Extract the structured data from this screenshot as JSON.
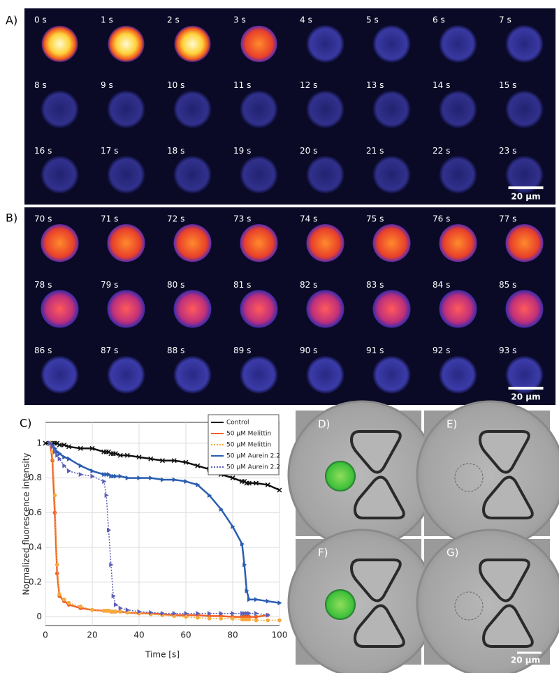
{
  "panel_a": {
    "label": "A)",
    "frames": [
      "0 s",
      "1 s",
      "2 s",
      "3 s",
      "4 s",
      "5 s",
      "6 s",
      "7 s",
      "8 s",
      "9 s",
      "10 s",
      "11 s",
      "12 s",
      "13 s",
      "14 s",
      "15 s",
      "16 s",
      "17 s",
      "18 s",
      "19 s",
      "20 s",
      "21 s",
      "22 s",
      "23 s"
    ],
    "scale_bar": "20 μm"
  },
  "panel_b": {
    "label": "B)",
    "frames": [
      "70 s",
      "71 s",
      "72 s",
      "73 s",
      "74 s",
      "75 s",
      "76 s",
      "77 s",
      "78 s",
      "79 s",
      "80 s",
      "81 s",
      "82 s",
      "83 s",
      "84 s",
      "85 s",
      "86 s",
      "87 s",
      "88 s",
      "89 s",
      "90 s",
      "91 s",
      "92 s",
      "93 s"
    ],
    "scale_bar": "20 μm"
  },
  "chart_data": {
    "type": "line",
    "label": "C)",
    "xlabel": "Time [s]",
    "ylabel": "Normalized fluorescence intensity",
    "x": [
      0,
      2,
      3,
      4,
      5,
      6,
      8,
      10,
      15,
      20,
      25,
      26,
      27,
      28,
      29,
      30,
      32,
      35,
      40,
      45,
      50,
      55,
      60,
      65,
      70,
      75,
      80,
      84,
      85,
      86,
      87,
      90,
      95,
      100
    ],
    "series": [
      {
        "name": "Control",
        "color": "#111111",
        "linestyle": "solid",
        "marker": "x",
        "values": [
          1.0,
          1.0,
          1.0,
          1.0,
          1.0,
          0.99,
          0.99,
          0.98,
          0.97,
          0.97,
          0.95,
          0.95,
          0.95,
          0.94,
          0.94,
          0.94,
          0.93,
          0.93,
          0.92,
          0.91,
          0.9,
          0.9,
          0.89,
          0.87,
          0.85,
          0.82,
          0.8,
          0.78,
          0.78,
          0.77,
          0.77,
          0.77,
          0.76,
          0.73
        ]
      },
      {
        "name": "50 μM Melittin",
        "color": "#f0622a",
        "linestyle": "solid",
        "marker": "o",
        "values": [
          null,
          1.0,
          0.9,
          0.6,
          0.25,
          0.12,
          0.09,
          0.07,
          0.05,
          0.04,
          0.035,
          0.035,
          0.035,
          0.03,
          0.03,
          0.03,
          0.03,
          0.025,
          0.02,
          0.02,
          0.015,
          0.01,
          0.01,
          0.01,
          0.005,
          0.005,
          0,
          0,
          0,
          0,
          0,
          0,
          0.01,
          null
        ]
      },
      {
        "name": "50 μM Melittin",
        "color": "#f6a93b",
        "linestyle": "dotted",
        "marker": "o",
        "values": [
          null,
          1.0,
          0.95,
          0.7,
          0.3,
          0.13,
          0.1,
          0.08,
          0.06,
          0.04,
          0.035,
          0.035,
          0.035,
          0.03,
          0.03,
          0.03,
          0.03,
          0.025,
          0.02,
          0.015,
          0.01,
          0.005,
          0,
          -0.005,
          -0.01,
          -0.01,
          -0.01,
          -0.015,
          -0.015,
          -0.015,
          -0.015,
          -0.02,
          -0.02,
          -0.02
        ]
      },
      {
        "name": "50 μM Aurein 2.2",
        "color": "#2a5db0",
        "linestyle": "solid",
        "marker": "triangle",
        "values": [
          null,
          1.0,
          0.99,
          0.97,
          0.95,
          0.94,
          0.92,
          0.91,
          0.87,
          0.84,
          0.82,
          0.82,
          0.82,
          0.81,
          0.81,
          0.81,
          0.81,
          0.8,
          0.8,
          0.8,
          0.79,
          0.79,
          0.78,
          0.76,
          0.7,
          0.62,
          0.52,
          0.42,
          0.3,
          0.15,
          0.1,
          0.1,
          0.09,
          0.08
        ]
      },
      {
        "name": "50 μM Aurein 2.2",
        "color": "#5b5fb8",
        "linestyle": "dotted",
        "marker": "triangle",
        "values": [
          null,
          1.0,
          0.98,
          0.95,
          0.93,
          0.91,
          0.87,
          0.84,
          0.82,
          0.81,
          0.78,
          0.7,
          0.5,
          0.3,
          0.12,
          0.07,
          0.05,
          0.04,
          0.03,
          0.025,
          0.02,
          0.02,
          0.02,
          0.02,
          0.02,
          0.02,
          0.02,
          0.02,
          0.02,
          0.02,
          0.02,
          0.02,
          0.01,
          null
        ]
      }
    ],
    "xlim": [
      0,
      100
    ],
    "ylim": [
      -0.05,
      1.12
    ],
    "xticks": [
      0,
      20,
      40,
      60,
      80,
      100
    ],
    "yticks": [
      0,
      0.2,
      0.4,
      0.6,
      0.8,
      1
    ],
    "grid": true,
    "legend": "upper right"
  },
  "panel_images": {
    "labels": [
      "D)",
      "E)",
      "F)",
      "G)"
    ],
    "scale_bar": "20 μm"
  }
}
